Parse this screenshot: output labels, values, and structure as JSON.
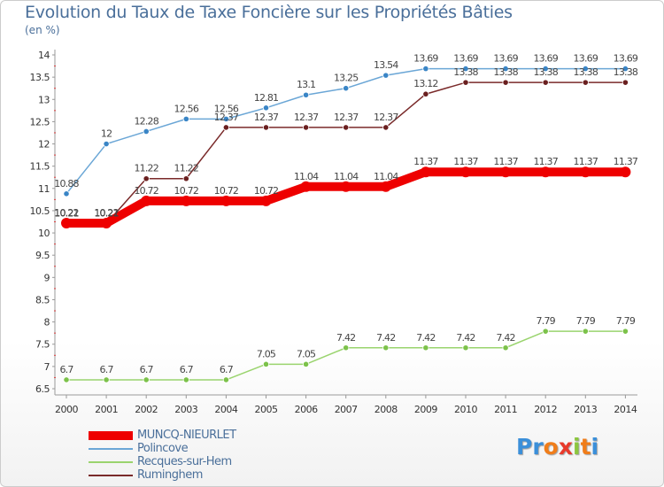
{
  "title": "Evolution du Taux de Taxe Foncière sur les Propriétés Bâties",
  "unit_label": "(en %)",
  "logo": {
    "letters": [
      "P",
      "r",
      "o",
      "x",
      "i",
      "t",
      "i"
    ],
    "colors": [
      "#3b8fd9",
      "#3b8fd9",
      "#f07d1a",
      "#e83a2b",
      "#8cc63f",
      "#f07d1a",
      "#3b8fd9"
    ]
  },
  "chart_data": {
    "type": "line",
    "title": "Evolution du Taux de Taxe Foncière sur les Propriétés Bâties",
    "ylabel": "(en %)",
    "xlabel": "",
    "x": [
      "2000",
      "2001",
      "2002",
      "2003",
      "2004",
      "2005",
      "2006",
      "2007",
      "2008",
      "2009",
      "2010",
      "2011",
      "2012",
      "2013",
      "2014"
    ],
    "ylim": [
      6.5,
      14
    ],
    "yticks": [
      "6.5",
      "7",
      "7.5",
      "8",
      "8.5",
      "9",
      "9.5",
      "10",
      "10.5",
      "11",
      "11.5",
      "12",
      "12.5",
      "13",
      "13.5",
      "14"
    ],
    "grid": false,
    "legend_position": "bottom-left",
    "series": [
      {
        "name": "Polincove",
        "color": "#6aa6d6",
        "marker_color": "#3a85c6",
        "emphasis": "normal",
        "values": [
          10.88,
          12,
          12.28,
          12.56,
          12.56,
          12.81,
          13.1,
          13.25,
          13.54,
          13.69,
          13.69,
          13.69,
          13.69,
          13.69,
          13.69
        ],
        "labels": [
          "10.88",
          "12",
          "12.28",
          "12.56",
          "12.56",
          "12.81",
          "13.1",
          "13.25",
          "13.54",
          "13.69",
          "13.69",
          "13.69",
          "13.69",
          "13.69",
          "13.69"
        ]
      },
      {
        "name": "Ruminghem",
        "color": "#7a2a2a",
        "marker_color": "#6a1f1f",
        "emphasis": "normal",
        "values": [
          10.21,
          10.21,
          11.22,
          11.22,
          12.37,
          12.37,
          12.37,
          12.37,
          12.37,
          13.12,
          13.38,
          13.38,
          13.38,
          13.38,
          13.38
        ],
        "labels": [
          "10.21",
          "10.21",
          "11.22",
          "11.22",
          "12.37",
          "12.37",
          "12.37",
          "12.37",
          "12.37",
          "13.12",
          "13.38",
          "13.38",
          "13.38",
          "13.38",
          "13.38"
        ]
      },
      {
        "name": "Recques-sur-Hem",
        "color": "#9ad46e",
        "marker_color": "#7cc24a",
        "emphasis": "normal",
        "values": [
          6.7,
          6.7,
          6.7,
          6.7,
          6.7,
          7.05,
          7.05,
          7.42,
          7.42,
          7.42,
          7.42,
          7.42,
          7.79,
          7.79,
          7.79
        ],
        "labels": [
          "6.7",
          "6.7",
          "6.7",
          "6.7",
          "6.7",
          "7.05",
          "7.05",
          "7.42",
          "7.42",
          "7.42",
          "7.42",
          "7.42",
          "7.79",
          "7.79",
          "7.79"
        ]
      },
      {
        "name": "MUNCQ-NIEURLET",
        "color": "#ee0000",
        "marker_color": "#ee0000",
        "emphasis": "bold",
        "values": [
          10.22,
          10.22,
          10.72,
          10.72,
          10.72,
          10.72,
          11.04,
          11.04,
          11.04,
          11.37,
          11.37,
          11.37,
          11.37,
          11.37,
          11.37
        ],
        "labels": [
          "10.22",
          "10.22",
          "10.72",
          "10.72",
          "10.72",
          "10.72",
          "11.04",
          "11.04",
          "11.04",
          "11.37",
          "11.37",
          "11.37",
          "11.37",
          "11.37",
          "11.37"
        ]
      }
    ],
    "legend_order": [
      "MUNCQ-NIEURLET",
      "Polincove",
      "Recques-sur-Hem",
      "Ruminghem"
    ]
  }
}
